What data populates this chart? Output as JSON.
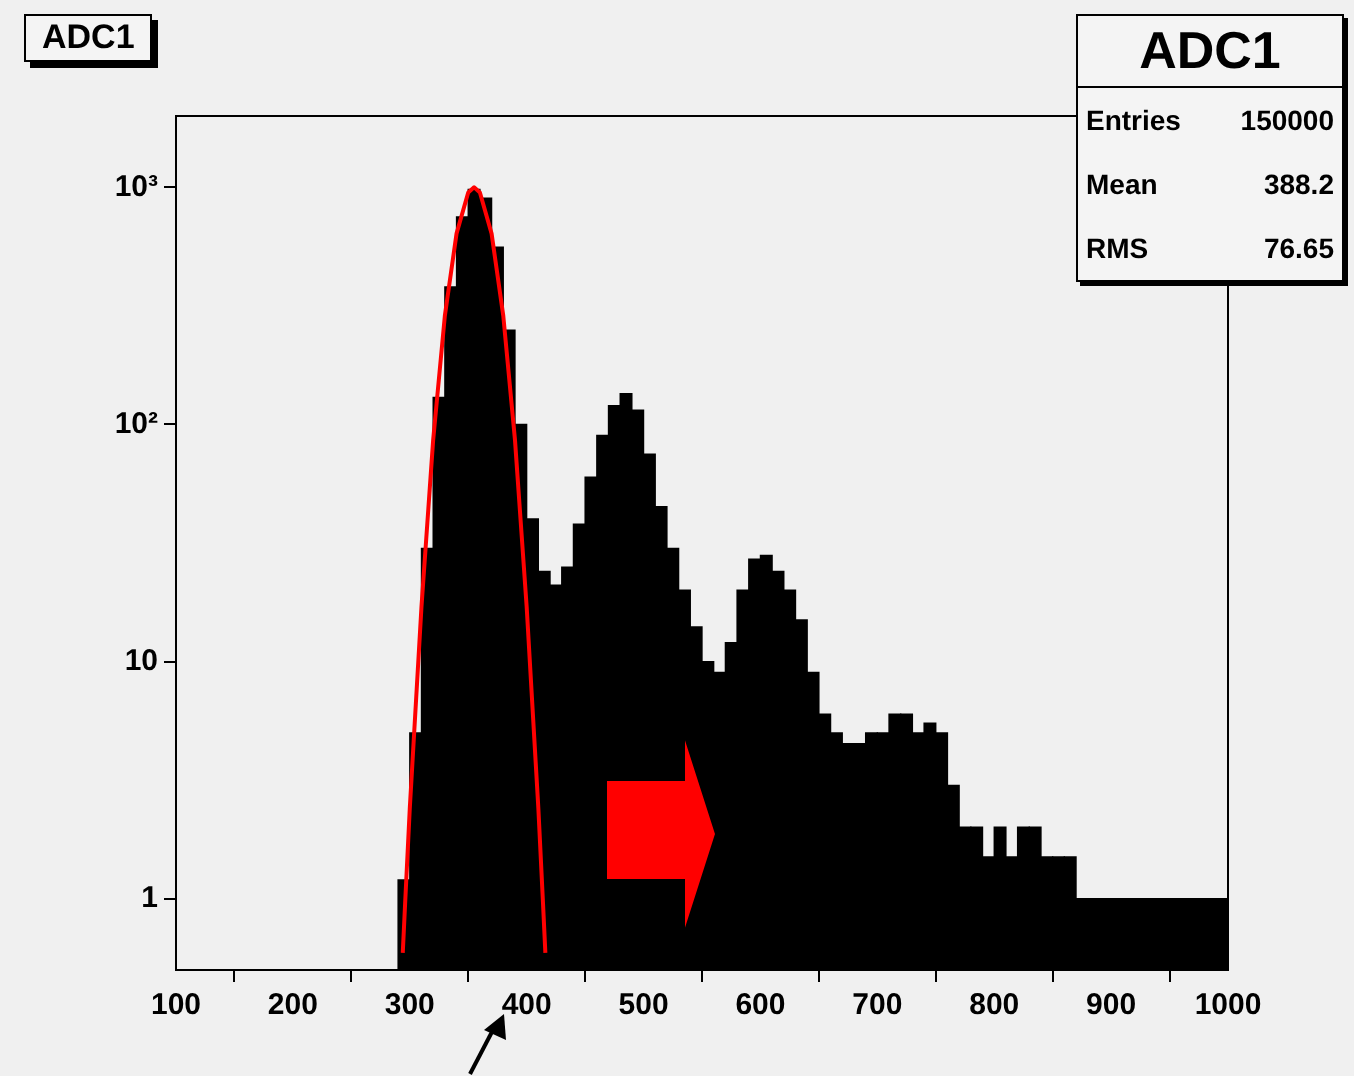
{
  "chart_data": {
    "type": "histogram",
    "title": "ADC1",
    "bins": [
      290,
      300,
      310,
      320,
      330,
      340,
      350,
      360,
      370,
      380,
      390,
      400,
      410,
      420,
      430,
      440,
      450,
      460,
      470,
      480,
      490,
      500,
      510,
      520,
      530,
      540,
      550,
      560,
      570,
      580,
      590,
      600,
      610,
      620,
      630,
      640,
      650,
      660,
      670,
      680,
      690,
      700,
      710,
      720,
      730,
      740,
      750,
      760,
      770,
      780,
      790,
      800,
      810,
      820,
      830,
      840,
      850,
      860,
      870,
      880,
      890,
      900,
      910,
      920,
      930,
      940,
      950,
      960,
      970,
      980,
      990,
      1000
    ],
    "color": "#000000",
    "values": [
      1.2,
      5,
      30,
      130,
      380,
      750,
      980,
      900,
      560,
      250,
      100,
      40,
      24,
      21,
      25,
      38,
      60,
      90,
      120,
      135,
      115,
      75,
      45,
      30,
      20,
      14,
      10,
      9,
      12,
      20,
      27,
      28,
      24,
      20,
      15,
      9,
      6,
      5,
      4.5,
      4.5,
      5,
      5,
      6,
      6,
      5,
      5.5,
      5,
      3,
      2,
      2,
      1.5,
      2,
      1.5,
      2,
      2,
      1.5,
      1.5,
      1.5,
      1,
      1,
      1,
      1,
      1,
      1,
      1,
      1,
      1,
      1,
      1,
      1,
      1
    ],
    "series": [
      {
        "type": "line",
        "color": "#ff0000",
        "x": [
          294,
          296,
          300,
          310,
          320,
          330,
          340,
          350,
          355,
          360,
          370,
          380,
          390,
          400,
          410,
          414,
          416
        ],
        "values": [
          0.59,
          0.95,
          2.4,
          17,
          86,
          287,
          638,
          951,
          1000,
          951,
          638,
          287,
          86,
          17,
          2.4,
          0.95,
          0.59
        ]
      }
    ],
    "xlim": [
      100,
      1000
    ],
    "xticks": [
      100,
      200,
      300,
      400,
      500,
      600,
      700,
      800,
      900,
      1000
    ],
    "ylim": [
      0.5,
      2000
    ],
    "yticks": [
      1,
      10,
      {
        "value": 100,
        "label": "10²"
      },
      {
        "value": 1000,
        "label": "10³"
      }
    ],
    "log": "y",
    "grid": false,
    "legend": false,
    "annotations": [
      "ADC1",
      "Entries",
      "150000",
      "Mean",
      "388.2",
      "RMS",
      "76.65"
    ]
  }
}
